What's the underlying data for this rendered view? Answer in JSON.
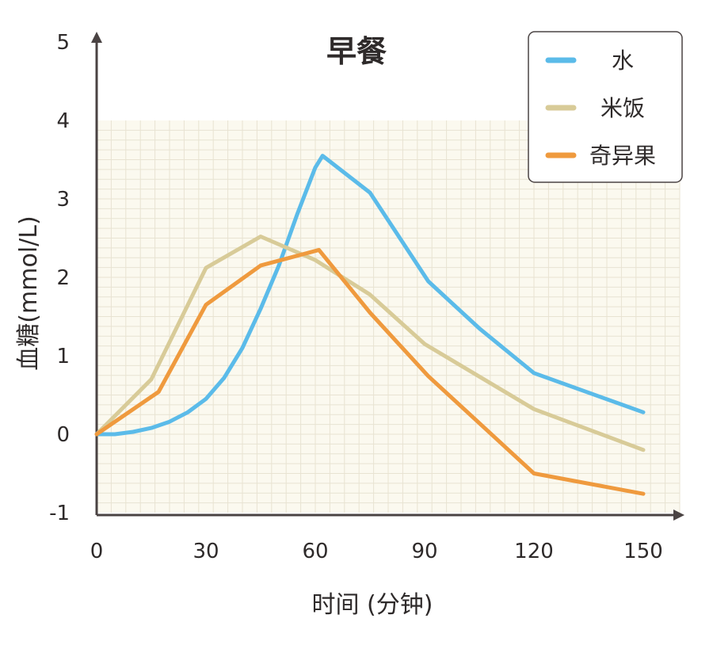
{
  "chart_data": {
    "type": "line",
    "title": "早餐",
    "xlabel": "时间 (分钟)",
    "ylabel": "血糖(mmol/L)",
    "x_ticks": [
      "0",
      "30",
      "60",
      "90",
      "120",
      "150"
    ],
    "y_ticks": [
      "-1",
      "0",
      "1",
      "2",
      "3",
      "4",
      "5"
    ],
    "xlim": [
      0,
      160
    ],
    "ylim": [
      -1,
      5
    ],
    "grid": true,
    "grid_ylim": [
      -1,
      4
    ],
    "legend_position": "top-right",
    "series": [
      {
        "name": "水",
        "color": "#5bbbe9",
        "x": [
          0,
          5,
          10,
          15,
          20,
          25,
          30,
          35,
          40,
          45,
          50,
          55,
          60,
          62,
          75,
          91,
          105,
          120,
          150
        ],
        "y": [
          0,
          0,
          0.03,
          0.08,
          0.16,
          0.28,
          0.45,
          0.72,
          1.1,
          1.6,
          2.15,
          2.8,
          3.4,
          3.55,
          3.08,
          1.95,
          1.35,
          0.78,
          0.28
        ]
      },
      {
        "name": "米饭",
        "color": "#d8cb98",
        "x": [
          0,
          15,
          30,
          45,
          60,
          75,
          90,
          120,
          150
        ],
        "y": [
          0,
          0.7,
          2.12,
          2.52,
          2.22,
          1.78,
          1.15,
          0.32,
          -0.2
        ]
      },
      {
        "name": "奇异果",
        "color": "#ef9a3e",
        "x": [
          0,
          17,
          30,
          45,
          61,
          75,
          91,
          120,
          150
        ],
        "y": [
          0,
          0.54,
          1.65,
          2.15,
          2.35,
          1.55,
          0.74,
          -0.5,
          -0.76
        ]
      }
    ]
  }
}
